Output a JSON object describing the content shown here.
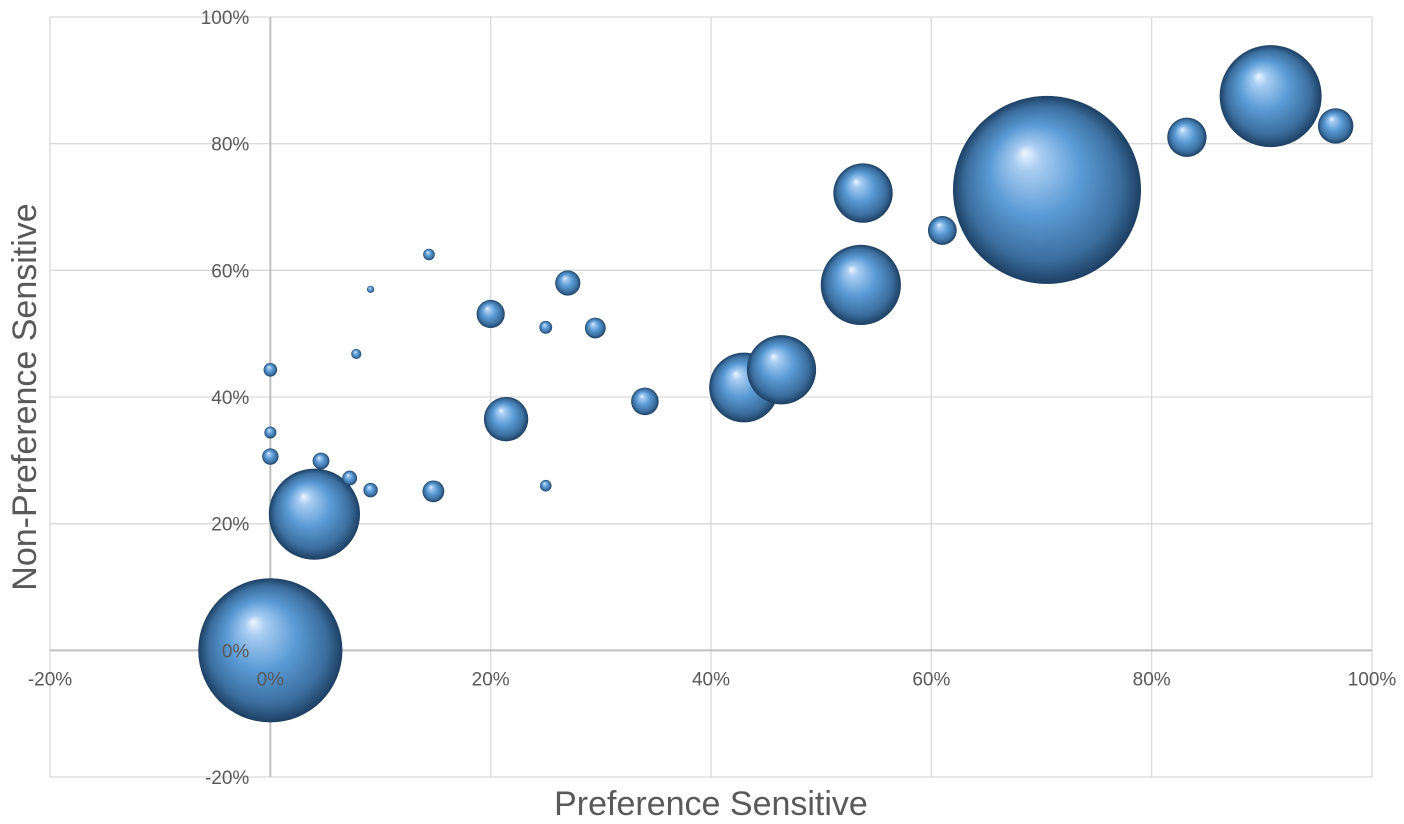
{
  "chart_data": {
    "type": "bubble",
    "xlabel": "Preference Sensitive",
    "ylabel": "Non-Preference Sensitive",
    "xlim": [
      -0.2,
      1.0
    ],
    "ylim": [
      -0.2,
      1.0
    ],
    "grid": true,
    "legend": "none",
    "x_ticks": [
      {
        "value": -0.2,
        "label": "-20%"
      },
      {
        "value": 0.0,
        "label": "0%"
      },
      {
        "value": 0.2,
        "label": "20%"
      },
      {
        "value": 0.4,
        "label": "40%"
      },
      {
        "value": 0.6,
        "label": "60%"
      },
      {
        "value": 0.8,
        "label": "80%"
      },
      {
        "value": 1.0,
        "label": "100%"
      }
    ],
    "y_ticks": [
      {
        "value": -0.2,
        "label": "-20%"
      },
      {
        "value": 0.0,
        "label": "0%"
      },
      {
        "value": 0.2,
        "label": "20%"
      },
      {
        "value": 0.4,
        "label": "40%"
      },
      {
        "value": 0.6,
        "label": "60%"
      },
      {
        "value": 0.8,
        "label": "80%"
      },
      {
        "value": 1.0,
        "label": "100%"
      }
    ],
    "colors": {
      "bubble_base": "#5b9bd5",
      "bubble_highlight": "#dcebfa",
      "bubble_shadow": "#1d3f63",
      "grid": "#d9d9d9",
      "axis": "#bfbfbf",
      "text": "#595959"
    },
    "points": [
      {
        "x": 0.0,
        "y": 0.0,
        "size": 1.0
      },
      {
        "x": 0.0,
        "y": 0.0,
        "size": 2.0
      },
      {
        "x": 0.0,
        "y": 0.0,
        "size": 2000.0
      },
      {
        "x": 0.0,
        "y": 0.443,
        "size": 18.0
      },
      {
        "x": 0.0,
        "y": 0.344,
        "size": 14.0
      },
      {
        "x": 0.0,
        "y": 0.306,
        "size": 26.0
      },
      {
        "x": 0.04,
        "y": 0.215,
        "size": 800.0
      },
      {
        "x": 0.046,
        "y": 0.299,
        "size": 27.0
      },
      {
        "x": 0.072,
        "y": 0.272,
        "size": 21.0
      },
      {
        "x": 0.078,
        "y": 0.468,
        "size": 10.0
      },
      {
        "x": 0.091,
        "y": 0.253,
        "size": 20.0
      },
      {
        "x": 0.091,
        "y": 0.57,
        "size": 5.0
      },
      {
        "x": 0.144,
        "y": 0.625,
        "size": 13.0
      },
      {
        "x": 0.148,
        "y": 0.251,
        "size": 46.0
      },
      {
        "x": 0.2,
        "y": 0.531,
        "size": 76.0
      },
      {
        "x": 0.214,
        "y": 0.365,
        "size": 190.0
      },
      {
        "x": 0.25,
        "y": 0.51,
        "size": 16.0
      },
      {
        "x": 0.25,
        "y": 0.26,
        "size": 13.0
      },
      {
        "x": 0.27,
        "y": 0.58,
        "size": 61.0
      },
      {
        "x": 0.295,
        "y": 0.509,
        "size": 42.0
      },
      {
        "x": 0.34,
        "y": 0.393,
        "size": 73.0
      },
      {
        "x": 0.43,
        "y": 0.415,
        "size": 470.0
      },
      {
        "x": 0.464,
        "y": 0.443,
        "size": 460.0
      },
      {
        "x": 0.538,
        "y": 0.722,
        "size": 340.0
      },
      {
        "x": 0.536,
        "y": 0.577,
        "size": 620.0
      },
      {
        "x": 0.61,
        "y": 0.663,
        "size": 80.0
      },
      {
        "x": 0.705,
        "y": 0.727,
        "size": 3400.0
      },
      {
        "x": 0.832,
        "y": 0.81,
        "size": 150.0
      },
      {
        "x": 0.967,
        "y": 0.828,
        "size": 120.0
      },
      {
        "x": 0.908,
        "y": 0.875,
        "size": 1000.0
      }
    ]
  }
}
